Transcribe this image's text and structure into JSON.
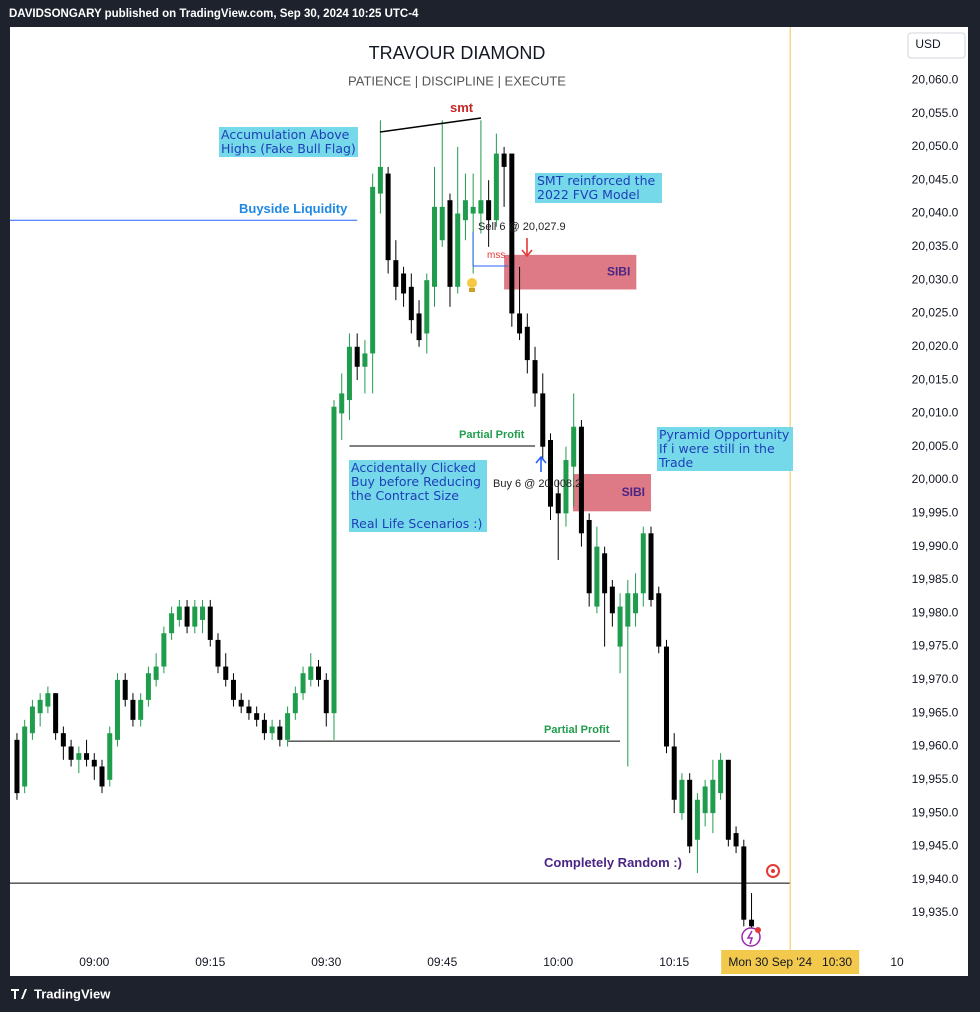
{
  "header": {
    "publisher": "DAVIDSONGARY published on TradingView.com, Sep 30, 2024 10:25 UTC-4",
    "currency": "USD",
    "footer": "TradingView"
  },
  "chart_data": {
    "type": "candlestick",
    "title": "TRAVOUR DIAMOND",
    "subtitle": "PATIENCE   |   DISCIPLINE   |   EXECUTE",
    "up_color": "#1f9d4c",
    "down_color": "#000000",
    "grid": false,
    "x": [
      530,
      531,
      532,
      533,
      534,
      535,
      536,
      537,
      538,
      539,
      540,
      541,
      542,
      543,
      544,
      545,
      546,
      547,
      548,
      549,
      550,
      551,
      552,
      553,
      554,
      555,
      556,
      557,
      558,
      559,
      560,
      561,
      562,
      563,
      564,
      565,
      566,
      567,
      568,
      569,
      570,
      571,
      572,
      573,
      574,
      575,
      576,
      577,
      578,
      579,
      580,
      581,
      582,
      583,
      584,
      585,
      586,
      587,
      588,
      589,
      590,
      591,
      592,
      593,
      594,
      595,
      596,
      597,
      598,
      599,
      600,
      601,
      602,
      603,
      604,
      605,
      606,
      607,
      608,
      609,
      610,
      611,
      612,
      613,
      614,
      615,
      616,
      617,
      618,
      619,
      620,
      621,
      622,
      623,
      624,
      625
    ],
    "open": [
      19961,
      19954,
      19962,
      19965,
      19966,
      19968,
      19962,
      19960,
      19958,
      19959,
      19958,
      19957,
      19955,
      19961,
      19970,
      19967,
      19964,
      19967,
      19970,
      19972,
      19977,
      19979,
      19981,
      19978,
      19979,
      19981,
      19976,
      19972,
      19970,
      19967,
      19966,
      19965,
      19964,
      19962,
      19963,
      19961,
      19965,
      19968,
      19970,
      19972,
      19970,
      19965,
      20010,
      20012,
      20020,
      20017,
      20019,
      20043,
      20046,
      20033,
      20031,
      20029,
      20025,
      20022,
      20029,
      20036,
      20042,
      20029,
      20039,
      20040,
      20040,
      20042,
      20039,
      20049,
      20049,
      20025,
      20023,
      20018,
      20013,
      20006,
      19998,
      19995,
      20002,
      20008,
      19994,
      19981,
      19989,
      19984,
      19975,
      19978,
      19980,
      19983,
      19992,
      19983,
      19975,
      19960,
      19950,
      19955,
      19946,
      19950,
      19950,
      19953,
      19958,
      19947,
      19945,
      19934
    ],
    "high": [
      19962,
      19964,
      19967,
      19968,
      19969,
      19968,
      19963,
      19961,
      19960,
      19961,
      19959,
      19958,
      19963,
      19971,
      19971,
      19968,
      19968,
      19972,
      19974,
      19978,
      19981,
      19982,
      19982,
      19982,
      19982,
      19982,
      19977,
      19974,
      19971,
      19968,
      19967,
      19966,
      19965,
      19964,
      19964,
      19966,
      19969,
      19972,
      19974,
      19973,
      19971,
      20012,
      20016,
      20022,
      20022,
      20021,
      20046,
      20054,
      20047,
      20036,
      20032,
      20031,
      20027,
      20031,
      20047,
      20054,
      20043,
      20050,
      20046,
      20046,
      20054,
      20045,
      20052,
      20050,
      20049,
      20032,
      20025,
      20020,
      20016,
      20007,
      20000,
      20005,
      20013,
      20009,
      19995,
      19993,
      19990,
      19985,
      19983,
      19985,
      19986,
      19993,
      19993,
      19984,
      19976,
      19962,
      19956,
      19956,
      19953,
      19955,
      19958,
      19959,
      19958,
      19948,
      19946,
      19938
    ],
    "low": [
      19952,
      19953,
      19961,
      19963,
      19965,
      19961,
      19958,
      19957,
      19956,
      19957,
      19955,
      19953,
      19954,
      19960,
      19966,
      19963,
      19963,
      19966,
      19969,
      19971,
      19976,
      19978,
      19977,
      19977,
      19977,
      19975,
      19971,
      19969,
      19966,
      19965,
      19964,
      19963,
      19961,
      19961,
      19960,
      19960,
      19964,
      19967,
      19969,
      19969,
      19963,
      19961,
      20006,
      20009,
      20015,
      20013,
      20013,
      20040,
      20031,
      20027,
      20026,
      20022,
      20020,
      20019,
      20026,
      20035,
      20026,
      20028,
      20036,
      20031,
      20037,
      20035,
      20038,
      20041,
      20023,
      20021,
      20016,
      20011,
      20003,
      19994,
      19988,
      19993,
      19996,
      19990,
      19981,
      19980,
      19975,
      19978,
      19971,
      19957,
      19978,
      19981,
      19981,
      19974,
      19959,
      19950,
      19949,
      19944,
      19941,
      19948,
      19947,
      19952,
      19945,
      19944,
      19933,
      19932
    ],
    "close": [
      19953,
      19963,
      19966,
      19967,
      19968,
      19962,
      19960,
      19958,
      19959,
      19958,
      19957,
      19954,
      19962,
      19970,
      19967,
      19964,
      19967,
      19971,
      19972,
      19977,
      19980,
      19981,
      19978,
      19981,
      19981,
      19976,
      19972,
      19970,
      19967,
      19966,
      19965,
      19964,
      19962,
      19963,
      19961,
      19965,
      19968,
      19971,
      19972,
      19970,
      19965,
      20011,
      20013,
      20020,
      20017,
      20019,
      20044,
      20047,
      20033,
      20029,
      20028,
      20024,
      20021,
      20030,
      20041,
      20041,
      20029,
      20040,
      20042,
      20041,
      20042,
      20039,
      20049,
      20047,
      20025,
      20022,
      20018,
      20013,
      20005,
      19996,
      19995,
      20003,
      20008,
      19992,
      19983,
      19990,
      19983,
      19980,
      19981,
      19983,
      19983,
      19992,
      19982,
      19975,
      19960,
      19952,
      19955,
      19945,
      19952,
      19954,
      19955,
      19958,
      19946,
      19945,
      19934,
      19933
    ],
    "xlim": [
      529.1,
      644.2
    ],
    "xticks": [
      {
        "value": 540,
        "label": "09:00"
      },
      {
        "value": 555,
        "label": "09:15"
      },
      {
        "value": 570,
        "label": "09:30"
      },
      {
        "value": 585,
        "label": "09:45"
      },
      {
        "value": 600,
        "label": "10:00"
      },
      {
        "value": 615,
        "label": "10:15"
      },
      {
        "value": 645,
        "label": "10"
      }
    ],
    "ylim": [
      19925.7,
      20068
    ],
    "yticks": [
      {
        "value": 19935,
        "label": "19,935.0"
      },
      {
        "value": 19940,
        "label": "19,940.0"
      },
      {
        "value": 19945,
        "label": "19,945.0"
      },
      {
        "value": 19950,
        "label": "19,950.0"
      },
      {
        "value": 19955,
        "label": "19,955.0"
      },
      {
        "value": 19960,
        "label": "19,960.0"
      },
      {
        "value": 19965,
        "label": "19,965.0"
      },
      {
        "value": 19970,
        "label": "19,970.0"
      },
      {
        "value": 19975,
        "label": "19,975.0"
      },
      {
        "value": 19980,
        "label": "19,980.0"
      },
      {
        "value": 19985,
        "label": "19,985.0"
      },
      {
        "value": 19990,
        "label": "19,990.0"
      },
      {
        "value": 19995,
        "label": "19,995.0"
      },
      {
        "value": 20000,
        "label": "20,000.0"
      },
      {
        "value": 20005,
        "label": "20,005.0"
      },
      {
        "value": 20010,
        "label": "20,010.0"
      },
      {
        "value": 20015,
        "label": "20,015.0"
      },
      {
        "value": 20020,
        "label": "20,020.0"
      },
      {
        "value": 20025,
        "label": "20,025.0"
      },
      {
        "value": 20030,
        "label": "20,030.0"
      },
      {
        "value": 20035,
        "label": "20,035.0"
      },
      {
        "value": 20040,
        "label": "20,040.0"
      },
      {
        "value": 20045,
        "label": "20,045.0"
      },
      {
        "value": 20050,
        "label": "20,050.0"
      },
      {
        "value": 20055,
        "label": "20,055.0"
      },
      {
        "value": 20060,
        "label": "20,060.0"
      }
    ],
    "levels": [
      {
        "value": 20039,
        "from": 529.1,
        "to": 574.0,
        "color": "#2962ff"
      },
      {
        "value": 20005.1,
        "from": 573.0,
        "to": 597.0,
        "color": "#000000"
      },
      {
        "value": 19960.8,
        "from": 565.0,
        "to": 608.0,
        "color": "#000000"
      },
      {
        "value": 19939.5,
        "from": 529.1,
        "to": 630.0,
        "color": "#000000"
      }
    ],
    "zones": [
      {
        "label": "SIBI",
        "top": 20033.8,
        "bottom": 20028.6,
        "from": 593.0,
        "to": 610.1,
        "color": "#de7a86"
      },
      {
        "label": "SIBI",
        "top": 20000.9,
        "bottom": 19995.3,
        "from": 601.9,
        "to": 612.0,
        "color": "#de7a86"
      }
    ],
    "crosshair": {
      "value": 630,
      "label": "Mon 30 Sep '24   10:30",
      "color": "#f2c94c"
    },
    "annotations": [
      "smt",
      [
        "Accumulation Above",
        "Highs (Fake Bull Flag)"
      ],
      "Buyside Liquidity",
      [
        "SMT reinforced the",
        "2022 FVG Model"
      ],
      "Sell 6 @ 20,027.9",
      "mss",
      "Partial Profit",
      [
        "Accidentally Clicked",
        "Buy before Reducing",
        "the Contract Size",
        "Real Life Scenarios :)"
      ],
      "Buy 6 @ 20,008.2",
      [
        "Pyramid Opportunity",
        "If i were still in the",
        "Trade"
      ],
      "Partial Profit",
      "Completely Random :)"
    ]
  }
}
